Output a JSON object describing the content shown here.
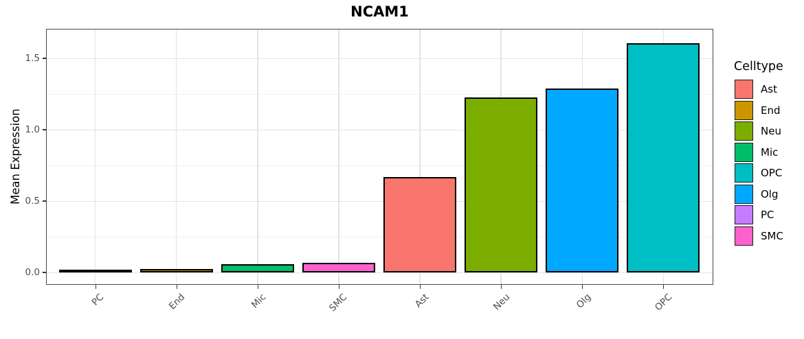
{
  "chart_data": {
    "type": "bar",
    "title": "NCAM1",
    "xlabel": "",
    "ylabel": "Mean Expression",
    "legend_title": "Celltype",
    "legend_position": "right",
    "categories": [
      "PC",
      "End",
      "Mic",
      "SMC",
      "Ast",
      "Neu",
      "Olg",
      "OPC"
    ],
    "values": [
      0.002,
      0.025,
      0.06,
      0.07,
      0.67,
      1.23,
      1.29,
      1.61
    ],
    "bar_colors": [
      "#C77CFF",
      "#CD9600",
      "#00BE67",
      "#FF61CC",
      "#F8766D",
      "#7CAE00",
      "#00A9FF",
      "#00BFC4"
    ],
    "bar_edge_color": "#000000",
    "ylim": [
      -0.08,
      1.7
    ],
    "ytick_values": [
      0,
      0.5,
      1.0,
      1.5
    ],
    "ytick_labels": [
      "0.0",
      "0.5",
      "1.0",
      "1.5"
    ],
    "yminor_values": [
      0.25,
      0.75,
      1.25
    ],
    "grid": "horizontal major+minor, vertical major at category centers",
    "legend": [
      {
        "label": "Ast",
        "color": "#F8766D"
      },
      {
        "label": "End",
        "color": "#CD9600"
      },
      {
        "label": "Neu",
        "color": "#7CAE00"
      },
      {
        "label": "Mic",
        "color": "#00BE67"
      },
      {
        "label": "OPC",
        "color": "#00BFC4"
      },
      {
        "label": "Olg",
        "color": "#00A9FF"
      },
      {
        "label": "PC",
        "color": "#C77CFF"
      },
      {
        "label": "SMC",
        "color": "#FF61CC"
      }
    ]
  },
  "theme": {
    "grid_major_color": "#e3e3e3",
    "grid_minor_color": "#f2f2f2",
    "panel_border_color": "#474747",
    "tick_color": "#333333",
    "axis_text_color": "#4d4d4d",
    "background": "#ffffff"
  }
}
